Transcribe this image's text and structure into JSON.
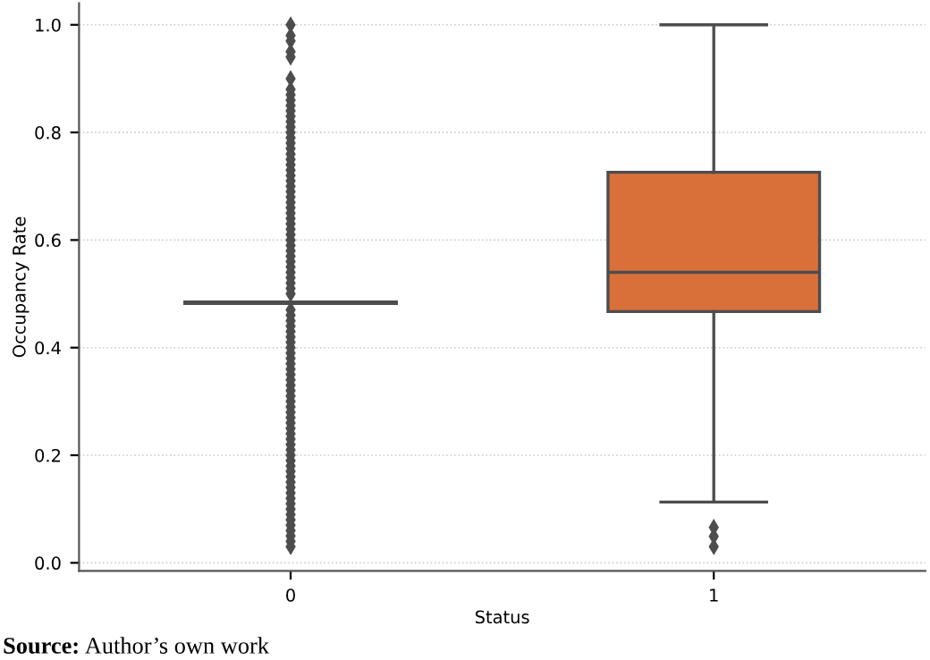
{
  "chart_data": {
    "type": "box",
    "categories": [
      "0",
      "1"
    ],
    "xlabel": "Status",
    "ylabel": "Occupancy Rate",
    "boxes": [
      {
        "low": 0.482,
        "q1": 0.482,
        "median": 0.483,
        "q3": 0.485,
        "high": 0.485,
        "outliers": [
          0.03,
          0.04,
          0.05,
          0.06,
          0.07,
          0.08,
          0.09,
          0.1,
          0.11,
          0.12,
          0.13,
          0.14,
          0.15,
          0.16,
          0.17,
          0.18,
          0.19,
          0.2,
          0.21,
          0.22,
          0.23,
          0.24,
          0.25,
          0.26,
          0.27,
          0.28,
          0.29,
          0.3,
          0.31,
          0.32,
          0.33,
          0.34,
          0.35,
          0.36,
          0.37,
          0.38,
          0.39,
          0.4,
          0.41,
          0.42,
          0.43,
          0.44,
          0.45,
          0.46,
          0.47,
          0.5,
          0.51,
          0.52,
          0.53,
          0.54,
          0.55,
          0.56,
          0.57,
          0.58,
          0.59,
          0.6,
          0.61,
          0.62,
          0.63,
          0.64,
          0.65,
          0.66,
          0.67,
          0.68,
          0.69,
          0.7,
          0.71,
          0.72,
          0.73,
          0.74,
          0.75,
          0.76,
          0.77,
          0.78,
          0.79,
          0.8,
          0.81,
          0.82,
          0.83,
          0.84,
          0.85,
          0.86,
          0.87,
          0.88,
          0.9,
          0.94,
          0.95,
          0.97,
          0.98,
          1.0
        ]
      },
      {
        "low": 0.113,
        "q1": 0.467,
        "median": 0.54,
        "q3": 0.726,
        "high": 1.0,
        "outliers": [
          0.03,
          0.049,
          0.066
        ]
      }
    ],
    "colors": [
      "#4a4a4a",
      "#d9703a"
    ],
    "ylim": [
      -0.015,
      1.04
    ],
    "yticks": [
      {
        "value": 0,
        "label": "0.0"
      },
      0.2,
      0.4,
      0.6,
      0.8,
      {
        "value": 1,
        "label": "1.0"
      }
    ],
    "grid": "y",
    "annotations": [
      "Source: Author’s own work"
    ]
  }
}
